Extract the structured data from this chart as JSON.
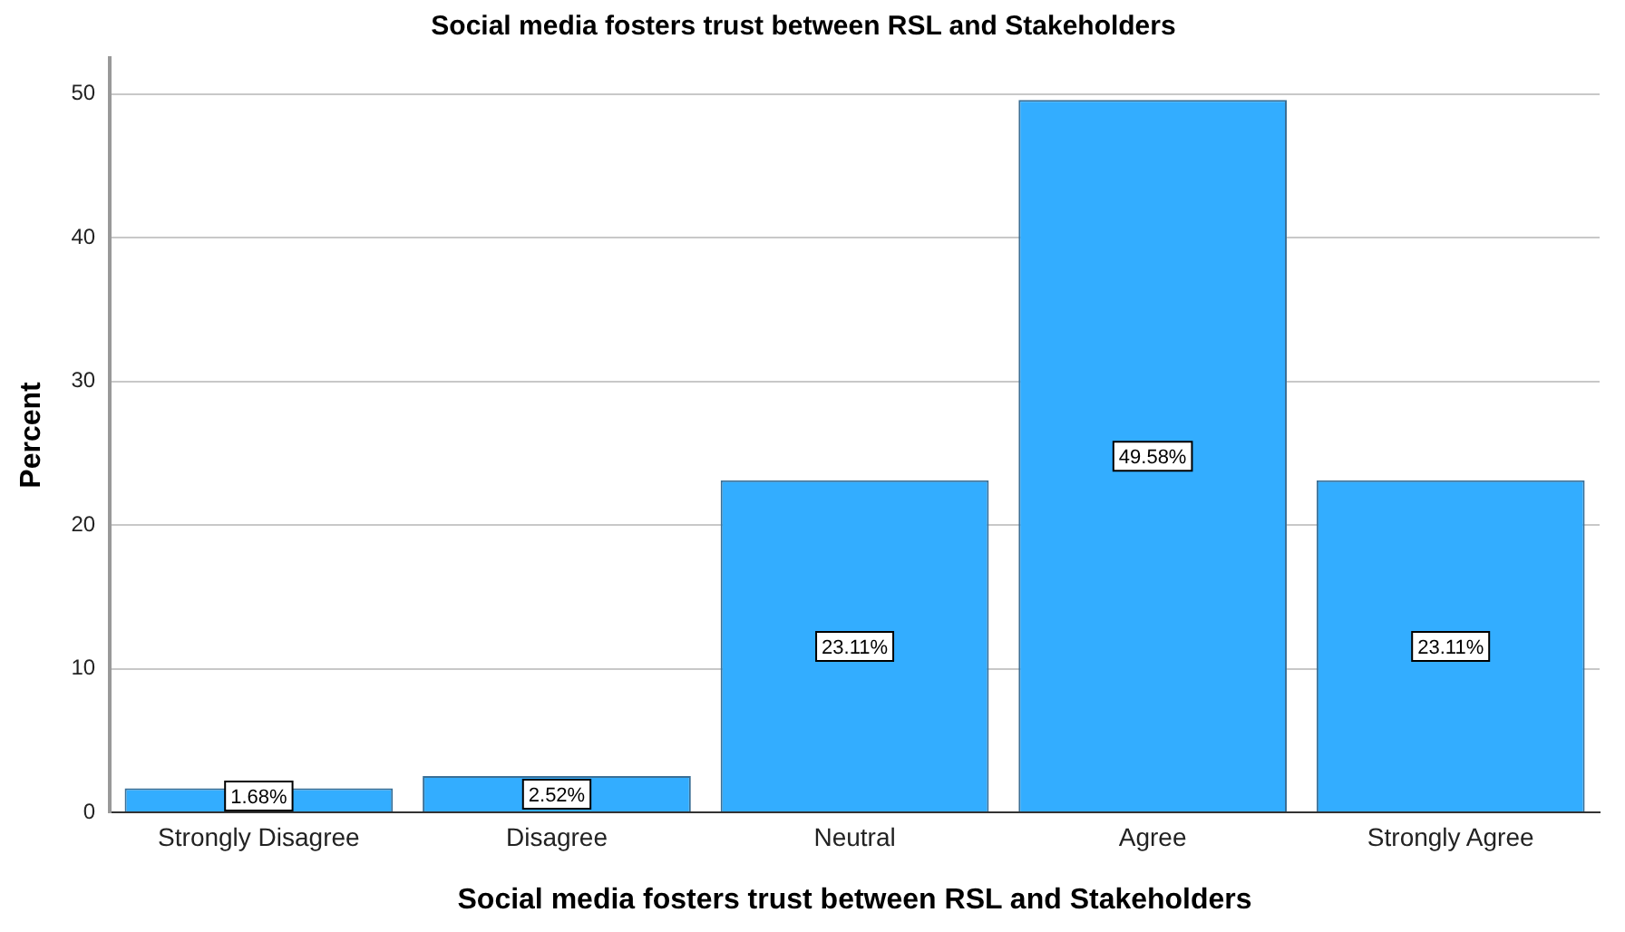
{
  "chart_data": {
    "type": "bar",
    "title": "Social media fosters trust between RSL and Stakeholders",
    "xlabel": "Social media fosters trust between RSL and Stakeholders",
    "ylabel": "Percent",
    "categories": [
      "Strongly Disagree",
      "Disagree",
      "Neutral",
      "Agree",
      "Strongly Agree"
    ],
    "values": [
      1.68,
      2.52,
      23.11,
      49.58,
      23.11
    ],
    "value_labels": [
      "1.68%",
      "2.52%",
      "23.11%",
      "49.58%",
      "23.11%"
    ],
    "color": "#33adff",
    "ylim": [
      0,
      52.5
    ],
    "yticks": [
      0,
      10,
      20,
      30,
      40,
      50
    ],
    "grid": "y"
  }
}
